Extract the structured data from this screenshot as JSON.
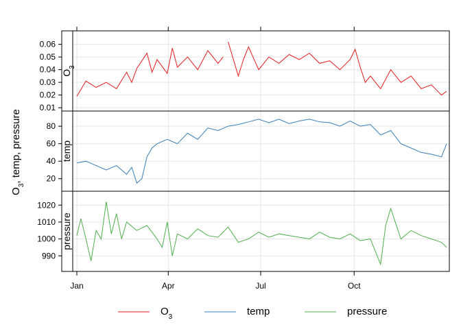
{
  "chart_data": {
    "type": "line",
    "ylabel": "O3, temp, pressure",
    "x_ticks": [
      "Jan",
      "Apr",
      "Jul",
      "Oct"
    ],
    "x_tick_days": [
      1,
      91,
      182,
      274
    ],
    "xlim": [
      1,
      365
    ],
    "grid": true,
    "legend_position": "bottom",
    "panels": [
      {
        "name": "O3",
        "strip_label": "O",
        "strip_sub": "3",
        "color": "#E41A1C",
        "ylim": [
          0.009,
          0.069
        ],
        "y_ticks": [
          "0.01",
          "0.02",
          "0.03",
          "0.04",
          "0.05",
          "0.06"
        ],
        "y_tick_values": [
          0.01,
          0.02,
          0.03,
          0.04,
          0.05,
          0.06
        ],
        "x": [
          1,
          10,
          20,
          30,
          40,
          50,
          55,
          60,
          70,
          75,
          80,
          90,
          95,
          100,
          110,
          120,
          130,
          140,
          145,
          150,
          160,
          165,
          170,
          180,
          190,
          200,
          210,
          220,
          230,
          240,
          250,
          260,
          270,
          275,
          280,
          285,
          290,
          300,
          310,
          320,
          330,
          340,
          350,
          360,
          365
        ],
        "y": [
          0.019,
          0.031,
          0.026,
          0.03,
          0.025,
          0.038,
          0.03,
          0.041,
          0.053,
          0.038,
          0.048,
          0.037,
          0.057,
          0.042,
          0.05,
          0.04,
          0.055,
          0.045,
          0.05,
          0.062,
          0.035,
          0.048,
          0.058,
          0.04,
          0.05,
          0.045,
          0.052,
          0.048,
          0.053,
          0.045,
          0.047,
          0.04,
          0.048,
          0.056,
          0.042,
          0.03,
          0.035,
          0.025,
          0.04,
          0.03,
          0.035,
          0.025,
          0.028,
          0.02,
          0.023
        ],
        "gaps_after": [
          145
        ]
      },
      {
        "name": "temp",
        "strip_label": "temp",
        "color": "#377EB8",
        "ylim": [
          8,
          95
        ],
        "y_ticks": [
          "20",
          "40",
          "60",
          "80"
        ],
        "y_tick_values": [
          20,
          40,
          60,
          80
        ],
        "x": [
          1,
          10,
          20,
          30,
          40,
          50,
          55,
          60,
          65,
          70,
          75,
          80,
          90,
          100,
          110,
          120,
          130,
          140,
          150,
          160,
          170,
          180,
          190,
          200,
          210,
          220,
          230,
          240,
          250,
          260,
          270,
          280,
          290,
          300,
          310,
          320,
          330,
          340,
          350,
          360,
          365
        ],
        "y": [
          38,
          40,
          35,
          30,
          35,
          25,
          33,
          15,
          20,
          45,
          55,
          60,
          65,
          60,
          72,
          65,
          78,
          75,
          80,
          82,
          85,
          88,
          84,
          88,
          83,
          86,
          88,
          85,
          84,
          80,
          86,
          80,
          82,
          70,
          75,
          60,
          55,
          50,
          48,
          45,
          60
        ],
        "gaps_after": []
      },
      {
        "name": "pressure",
        "strip_label": "pressure",
        "color": "#4DAF4A",
        "ylim": [
          982,
          1027
        ],
        "y_ticks": [
          "990",
          "1000",
          "1010",
          "1020"
        ],
        "y_tick_values": [
          990,
          1000,
          1010,
          1020
        ],
        "x": [
          1,
          5,
          10,
          15,
          20,
          25,
          30,
          35,
          40,
          45,
          50,
          60,
          70,
          80,
          85,
          90,
          95,
          100,
          110,
          120,
          130,
          140,
          150,
          160,
          170,
          180,
          190,
          200,
          210,
          220,
          230,
          240,
          250,
          260,
          270,
          280,
          290,
          300,
          305,
          310,
          320,
          330,
          340,
          350,
          360,
          365
        ],
        "y": [
          1002,
          1012,
          1000,
          987,
          1005,
          1000,
          1022,
          1003,
          1015,
          1000,
          1010,
          1005,
          1008,
          1000,
          995,
          1010,
          990,
          1003,
          1000,
          1006,
          1002,
          1001,
          1007,
          998,
          1000,
          1004,
          1001,
          1003,
          1002,
          1001,
          1000,
          1004,
          1001,
          1000,
          1003,
          999,
          1000,
          985,
          1008,
          1018,
          1000,
          1005,
          1002,
          1000,
          998,
          995
        ],
        "gaps_after": []
      }
    ],
    "legend": [
      {
        "label": "O",
        "sub": "3",
        "color": "#E41A1C"
      },
      {
        "label": "temp",
        "color": "#377EB8"
      },
      {
        "label": "pressure",
        "color": "#4DAF4A"
      }
    ]
  }
}
